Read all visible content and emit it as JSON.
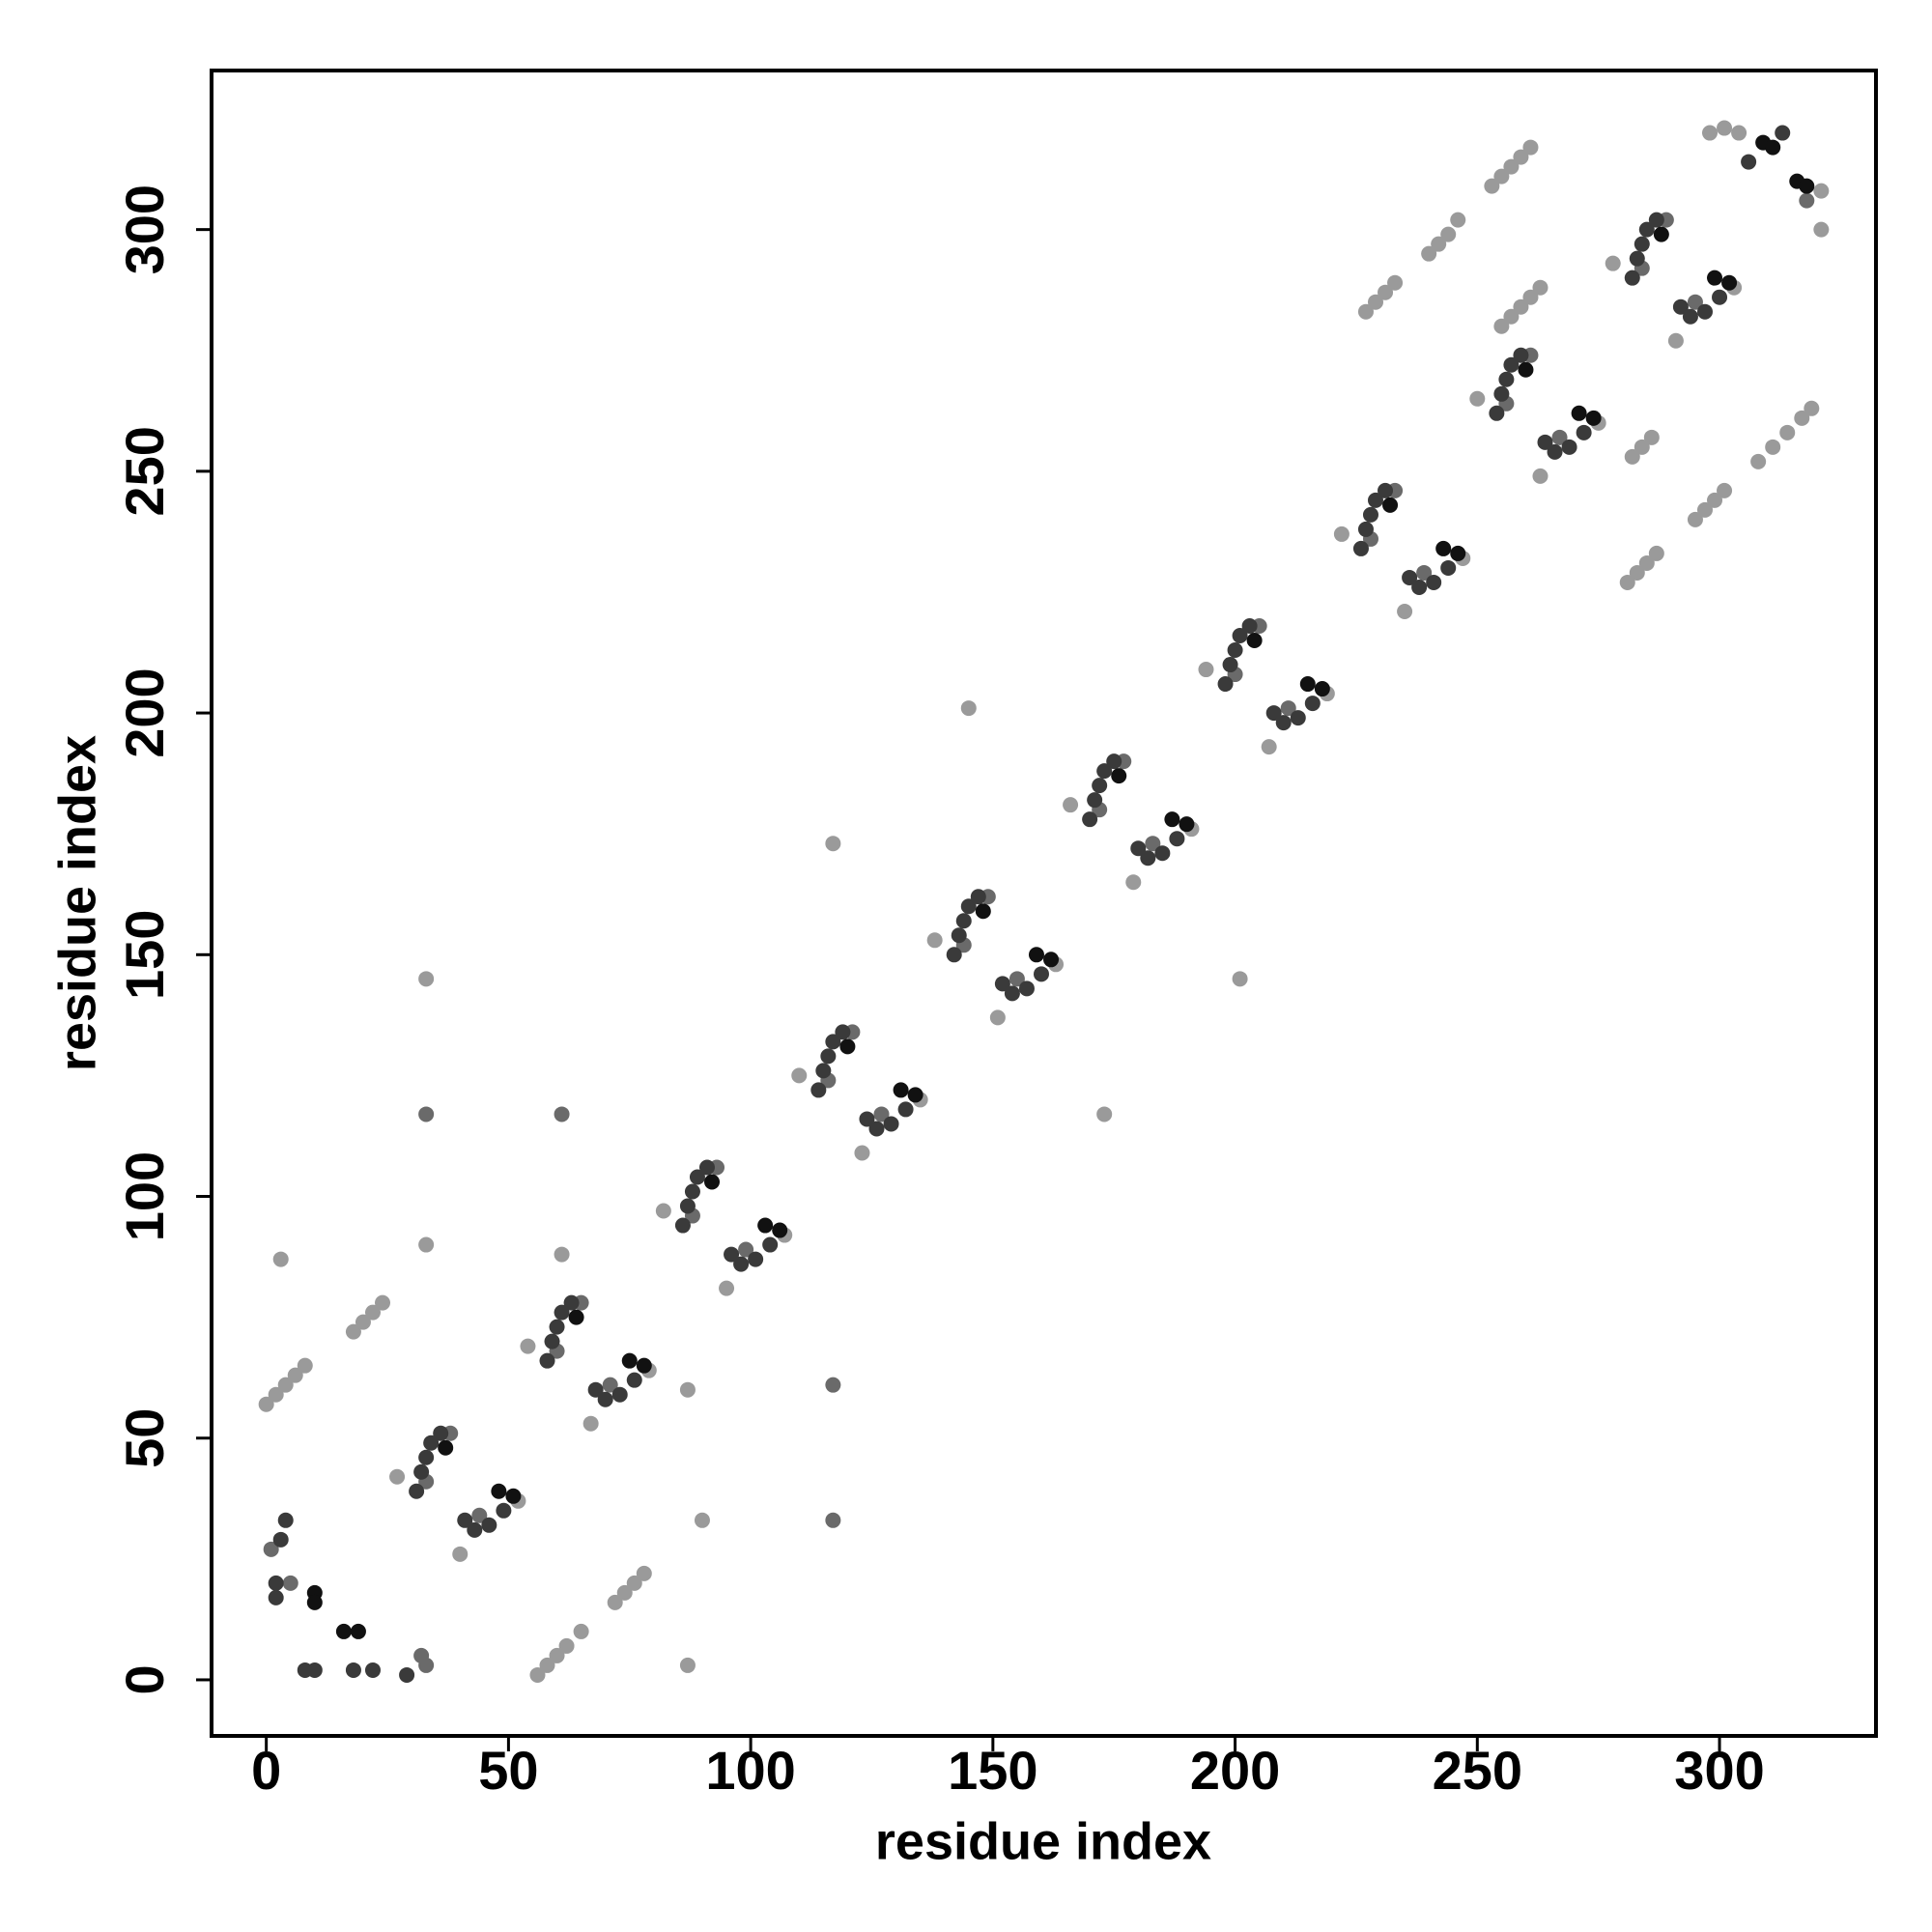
{
  "chart_data": {
    "type": "scatter",
    "x_label": "residue index",
    "y_label": "residue index",
    "xlim": [
      -11.3,
      332.3
    ],
    "ylim": [
      -11.6,
      332.9
    ],
    "xticks": [
      0,
      50,
      100,
      150,
      200,
      250,
      300
    ],
    "yticks": [
      0,
      50,
      100,
      150,
      200,
      250,
      300
    ],
    "grid": false,
    "series": [
      {
        "color": "#111111",
        "x": [
          37,
          48,
          51,
          64,
          75,
          78,
          92,
          103,
          106,
          120,
          131,
          134,
          148,
          159,
          162,
          176,
          187,
          190,
          204,
          215,
          218,
          232,
          243,
          246,
          260,
          271,
          274,
          288,
          299,
          302,
          309,
          311,
          316,
          318,
          10,
          10,
          16,
          19
        ],
        "values": [
          48,
          39,
          38,
          75,
          66,
          65,
          103,
          94,
          93,
          131,
          122,
          121,
          159,
          150,
          149,
          187,
          178,
          177,
          215,
          206,
          205,
          243,
          234,
          233,
          271,
          262,
          261,
          299,
          290,
          289,
          318,
          317,
          310,
          309,
          18,
          16,
          10,
          10
        ]
      },
      {
        "color": "#3a3a3a",
        "x": [
          31,
          32,
          33,
          34,
          36,
          41,
          43,
          46,
          49,
          58,
          59,
          60,
          61,
          63,
          68,
          70,
          73,
          76,
          86,
          87,
          88,
          89,
          91,
          96,
          98,
          101,
          104,
          114,
          115,
          116,
          117,
          119,
          124,
          126,
          129,
          132,
          142,
          143,
          144,
          145,
          147,
          152,
          154,
          157,
          160,
          170,
          171,
          172,
          173,
          175,
          180,
          182,
          185,
          188,
          198,
          199,
          200,
          201,
          203,
          208,
          210,
          213,
          216,
          226,
          227,
          228,
          229,
          231,
          236,
          238,
          241,
          244,
          254,
          255,
          256,
          257,
          259,
          264,
          266,
          269,
          272,
          282,
          283,
          284,
          285,
          287,
          292,
          294,
          297,
          300,
          2,
          2,
          3,
          4,
          8,
          10,
          18,
          22,
          29,
          306,
          313
        ],
        "values": [
          39,
          43,
          46,
          49,
          51,
          33,
          31,
          32,
          35,
          66,
          70,
          73,
          76,
          78,
          60,
          58,
          59,
          62,
          94,
          98,
          101,
          104,
          106,
          88,
          86,
          87,
          90,
          122,
          126,
          129,
          132,
          134,
          116,
          114,
          115,
          118,
          150,
          154,
          157,
          160,
          162,
          144,
          142,
          143,
          146,
          178,
          182,
          185,
          188,
          190,
          172,
          170,
          171,
          174,
          206,
          210,
          213,
          216,
          218,
          200,
          198,
          199,
          202,
          234,
          238,
          241,
          244,
          246,
          228,
          226,
          227,
          230,
          262,
          266,
          269,
          272,
          274,
          256,
          254,
          255,
          258,
          290,
          294,
          297,
          300,
          302,
          284,
          282,
          283,
          286,
          20,
          17,
          29,
          33,
          2,
          2,
          2,
          2,
          1,
          314,
          320
        ]
      },
      {
        "color": "#6a6a6a",
        "x": [
          33,
          44,
          38,
          60,
          71,
          65,
          88,
          99,
          93,
          116,
          127,
          121,
          144,
          155,
          149,
          172,
          183,
          177,
          200,
          211,
          205,
          228,
          239,
          233,
          256,
          267,
          261,
          284,
          295,
          289,
          1,
          5,
          32,
          33,
          318,
          61,
          117,
          33,
          117
        ],
        "values": [
          41,
          34,
          51,
          68,
          61,
          78,
          96,
          89,
          106,
          124,
          117,
          134,
          152,
          145,
          162,
          180,
          173,
          190,
          208,
          201,
          218,
          236,
          229,
          246,
          264,
          257,
          274,
          292,
          285,
          302,
          27,
          20,
          5,
          3,
          306,
          117,
          61,
          117,
          33
        ]
      },
      {
        "color": "#9a9a9a",
        "x": [
          27,
          40,
          52,
          54,
          67,
          79,
          82,
          95,
          107,
          110,
          123,
          135,
          138,
          151,
          163,
          166,
          179,
          191,
          194,
          207,
          219,
          222,
          235,
          247,
          250,
          263,
          275,
          278,
          291,
          303,
          0,
          2,
          4,
          6,
          8,
          18,
          20,
          22,
          24,
          56,
          58,
          60,
          62,
          65,
          72,
          74,
          76,
          78,
          227,
          229,
          231,
          233,
          240,
          242,
          244,
          246,
          253,
          255,
          257,
          259,
          261,
          255,
          257,
          259,
          261,
          263,
          298,
          301,
          304,
          281,
          283,
          285,
          287,
          295,
          297,
          299,
          301,
          308,
          311,
          314,
          317,
          319,
          282,
          284,
          286,
          33,
          3,
          87,
          145,
          201,
          117,
          173,
          33,
          90,
          61,
          87,
          321,
          321
        ],
        "values": [
          42,
          26,
          37,
          69,
          53,
          64,
          97,
          81,
          92,
          125,
          109,
          120,
          153,
          137,
          148,
          181,
          165,
          176,
          209,
          193,
          204,
          237,
          221,
          232,
          265,
          249,
          260,
          293,
          277,
          288,
          57,
          59,
          61,
          63,
          65,
          72,
          74,
          76,
          78,
          1,
          3,
          5,
          7,
          10,
          16,
          18,
          20,
          22,
          283,
          285,
          287,
          289,
          295,
          297,
          299,
          302,
          309,
          311,
          313,
          315,
          317,
          280,
          282,
          284,
          286,
          288,
          320,
          321,
          320,
          227,
          229,
          231,
          233,
          240,
          242,
          244,
          246,
          252,
          255,
          258,
          261,
          263,
          253,
          255,
          257,
          145,
          87,
          3,
          201,
          145,
          173,
          117,
          90,
          33,
          88,
          60,
          300,
          308
        ]
      }
    ]
  }
}
